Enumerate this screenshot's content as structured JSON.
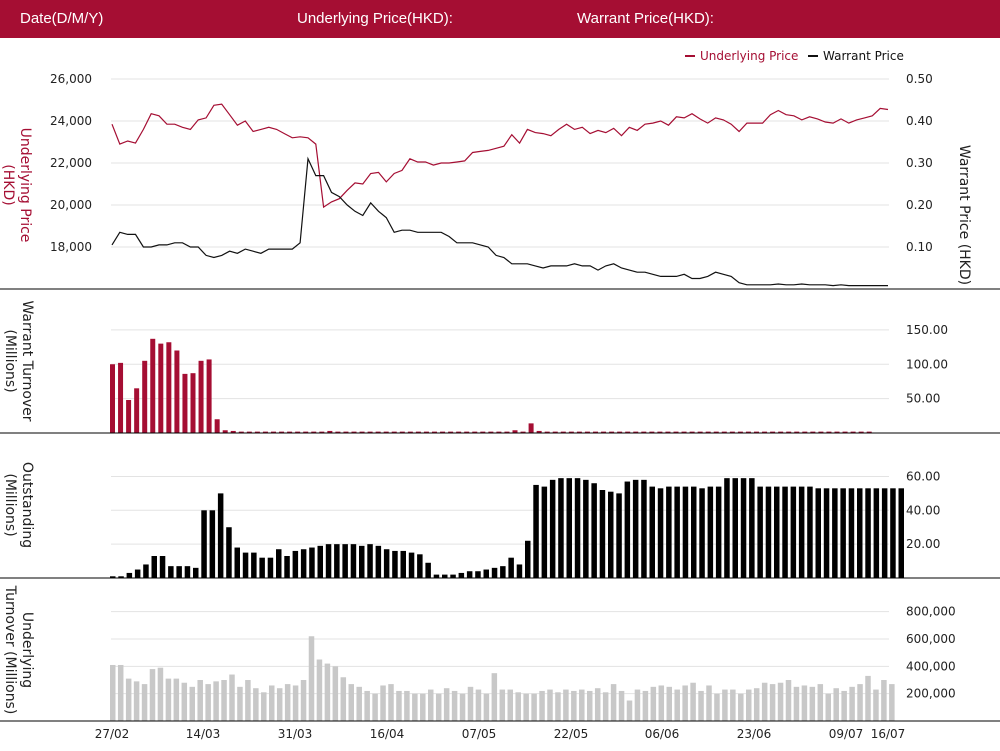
{
  "header": {
    "date_label": "Date(D/M/Y)",
    "underlying_label": "Underlying Price(HKD):",
    "warrant_label": "Warrant Price(HKD):"
  },
  "legend": {
    "underlying": "Underlying Price",
    "warrant": "Warrant Price"
  },
  "colors": {
    "header_bg": "#a50e33",
    "underlying": "#a50e33",
    "warrant": "#111111",
    "outstanding": "#000000",
    "underlying_turnover": "#c8c8c8"
  },
  "chart_data": [
    {
      "type": "line",
      "panel": "price",
      "xlabel": "",
      "ylabel_left": "Underlying Price (HKD)",
      "ylabel_right": "Warrant  Price (HKD)",
      "yticks_left": [
        "26,000",
        "24,000",
        "22,000",
        "20,000",
        "18,000"
      ],
      "yticks_right": [
        "0.50",
        "0.40",
        "0.30",
        "0.20",
        "0.10"
      ],
      "ylim_left": [
        16000,
        26000
      ],
      "ylim_right": [
        0,
        0.5
      ],
      "grid": true,
      "series": [
        {
          "name": "Underlying Price",
          "axis": "left",
          "values": [
            23850,
            22900,
            23050,
            22950,
            23600,
            24350,
            24250,
            23850,
            23850,
            23700,
            23600,
            24050,
            24150,
            24750,
            24800,
            24300,
            23800,
            24000,
            23500,
            23600,
            23700,
            23600,
            23400,
            23200,
            23250,
            23200,
            22900,
            19900,
            20150,
            20300,
            20700,
            21050,
            21000,
            21500,
            21550,
            21100,
            21500,
            21650,
            22200,
            22050,
            22050,
            21900,
            22000,
            22000,
            22050,
            22100,
            22500,
            22550,
            22600,
            22700,
            22800,
            23350,
            22950,
            23600,
            23450,
            23400,
            23300,
            23600,
            23850,
            23600,
            23700,
            23400,
            23550,
            23450,
            23650,
            23300,
            23700,
            23550,
            23850,
            23900,
            24000,
            23800,
            24200,
            24150,
            24350,
            24100,
            23900,
            24150,
            24050,
            23850,
            23500,
            23900,
            23900,
            23900,
            24300,
            24500,
            24300,
            24250,
            24050,
            24200,
            24100,
            23950,
            23900,
            24100,
            23900,
            24050,
            24150,
            24250,
            24600,
            24550
          ]
        },
        {
          "name": "Warrant Price",
          "axis": "right",
          "values": [
            0.105,
            0.135,
            0.13,
            0.13,
            0.1,
            0.1,
            0.105,
            0.105,
            0.11,
            0.11,
            0.1,
            0.1,
            0.08,
            0.075,
            0.08,
            0.09,
            0.085,
            0.095,
            0.09,
            0.085,
            0.095,
            0.095,
            0.095,
            0.095,
            0.11,
            0.31,
            0.27,
            0.27,
            0.23,
            0.22,
            0.2,
            0.185,
            0.175,
            0.205,
            0.185,
            0.17,
            0.135,
            0.14,
            0.14,
            0.135,
            0.135,
            0.135,
            0.135,
            0.125,
            0.11,
            0.11,
            0.11,
            0.105,
            0.1,
            0.08,
            0.075,
            0.06,
            0.06,
            0.06,
            0.055,
            0.05,
            0.055,
            0.055,
            0.055,
            0.06,
            0.055,
            0.055,
            0.045,
            0.055,
            0.06,
            0.05,
            0.045,
            0.04,
            0.04,
            0.035,
            0.03,
            0.03,
            0.03,
            0.035,
            0.025,
            0.025,
            0.03,
            0.04,
            0.035,
            0.03,
            0.015,
            0.01,
            0.01,
            0.01,
            0.01,
            0.012,
            0.01,
            0.01,
            0.012,
            0.01,
            0.01,
            0.01,
            0.008,
            0.01,
            0.008,
            0.008,
            0.008,
            0.008,
            0.008,
            0.008
          ]
        }
      ]
    },
    {
      "type": "bar",
      "panel": "warrant_turnover",
      "ylabel": "Warrant  Turnover (Millions)",
      "yticks": [
        "150.00",
        "100.00",
        "50.00"
      ],
      "ylim": [
        0,
        160
      ],
      "values": [
        100,
        102,
        48,
        65,
        105,
        137,
        130,
        132,
        120,
        86,
        87,
        105,
        107,
        20,
        4,
        3,
        2,
        2,
        2,
        2,
        2,
        2,
        2,
        2,
        2,
        2,
        2,
        3,
        2,
        2,
        2,
        2,
        2,
        2,
        2,
        2,
        2,
        2,
        2,
        2,
        2,
        2,
        2,
        2,
        2,
        2,
        2,
        2,
        2,
        2,
        4,
        2,
        14,
        3,
        2,
        2,
        2,
        2,
        2,
        2,
        2,
        2,
        2,
        2,
        2,
        2,
        2,
        2,
        2,
        2,
        2,
        2,
        2,
        2,
        2,
        2,
        2,
        2,
        2,
        2,
        2,
        2,
        2,
        2,
        2,
        2,
        2,
        2,
        2,
        2,
        2,
        2,
        2,
        2,
        2
      ]
    },
    {
      "type": "bar",
      "panel": "outstanding",
      "ylabel": "Outstanding (Millions)",
      "yticks": [
        "60.00",
        "40.00",
        "20.00"
      ],
      "ylim": [
        0,
        65
      ],
      "values": [
        1,
        1,
        3,
        5,
        8,
        13,
        13,
        7,
        7,
        7,
        6,
        40,
        40,
        50,
        30,
        18,
        15,
        15,
        12,
        12,
        17,
        13,
        16,
        17,
        18,
        19,
        20,
        20,
        20,
        20,
        19,
        20,
        19,
        17,
        16,
        16,
        15,
        14,
        9,
        2,
        2,
        2,
        3,
        4,
        4,
        5,
        6,
        7,
        12,
        8,
        22,
        55,
        54,
        58,
        59,
        59,
        59,
        58,
        56,
        52,
        51,
        50,
        57,
        58,
        58,
        54,
        53,
        54,
        54,
        54,
        54,
        53,
        54,
        54,
        59,
        59,
        59,
        59,
        54,
        54,
        54,
        54,
        54,
        54,
        54,
        53,
        53,
        53,
        53,
        53,
        53,
        53,
        53,
        53,
        53,
        53
      ]
    },
    {
      "type": "bar",
      "panel": "underlying_turnover",
      "ylabel": "Underlying Turnover (Millions)",
      "yticks": [
        "800,000",
        "600,000",
        "400,000",
        "200,000"
      ],
      "ylim": [
        0,
        900000
      ],
      "xtick_labels": [
        "27/02",
        "14/03",
        "31/03",
        "16/04",
        "07/05",
        "22/05",
        "06/06",
        "23/06",
        "09/07",
        "16/07"
      ],
      "values": [
        410000,
        410000,
        310000,
        290000,
        270000,
        380000,
        390000,
        310000,
        310000,
        280000,
        250000,
        300000,
        270000,
        290000,
        300000,
        340000,
        250000,
        300000,
        240000,
        210000,
        260000,
        240000,
        270000,
        260000,
        300000,
        620000,
        450000,
        420000,
        400000,
        320000,
        270000,
        250000,
        220000,
        200000,
        260000,
        270000,
        220000,
        220000,
        200000,
        200000,
        230000,
        200000,
        240000,
        220000,
        200000,
        250000,
        230000,
        200000,
        350000,
        230000,
        230000,
        210000,
        200000,
        200000,
        220000,
        230000,
        210000,
        230000,
        220000,
        230000,
        220000,
        240000,
        210000,
        270000,
        220000,
        150000,
        230000,
        220000,
        250000,
        260000,
        250000,
        230000,
        260000,
        280000,
        220000,
        260000,
        200000,
        230000,
        230000,
        200000,
        230000,
        240000,
        280000,
        270000,
        280000,
        300000,
        250000,
        260000,
        250000,
        270000,
        200000,
        240000,
        220000,
        250000,
        270000,
        330000,
        230000,
        300000,
        270000
      ]
    }
  ]
}
